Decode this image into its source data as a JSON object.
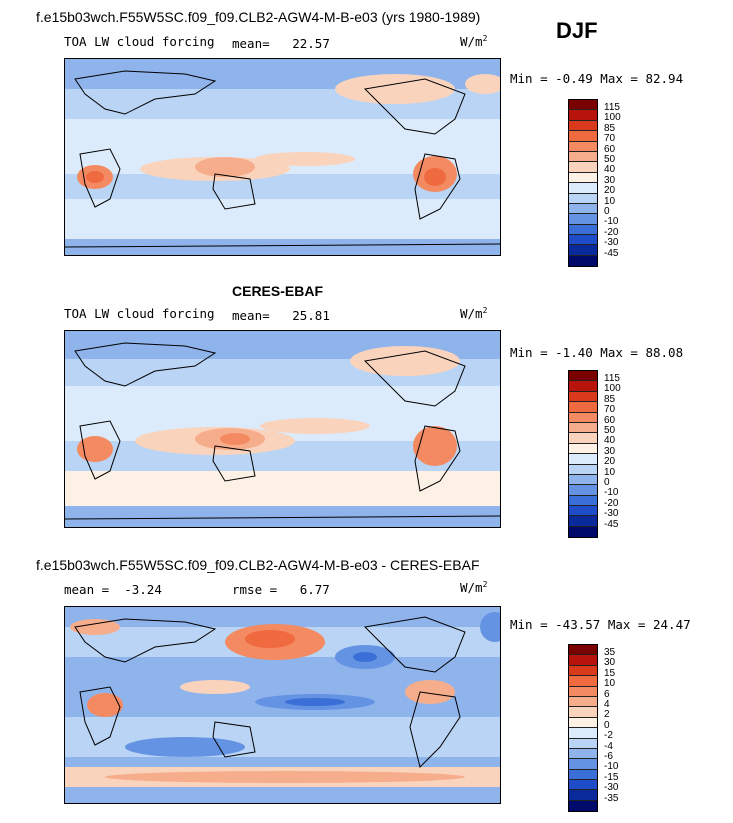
{
  "season": "DJF",
  "panel1": {
    "title": "f.e15b03wch.F55W5SC.f09_f09.CLB2-AGW4-M-B-e03 (yrs 1980-1989)",
    "variable": "TOA LW cloud forcing",
    "mean_label": "mean=",
    "mean_value": "22.57",
    "units": "W/m",
    "units_sup": "2",
    "min_max": "Min =  -0.49 Max =  82.94",
    "levels": [
      "115",
      "100",
      "85",
      "70",
      "60",
      "50",
      "40",
      "30",
      "20",
      "10",
      "0",
      "-10",
      "-20",
      "-30",
      "-45"
    ]
  },
  "panel2": {
    "title": "CERES-EBAF",
    "variable": "TOA LW cloud forcing",
    "mean_label": "mean=",
    "mean_value": "25.81",
    "units": "W/m",
    "units_sup": "2",
    "min_max": "Min =  -1.40 Max =  88.08",
    "levels": [
      "115",
      "100",
      "85",
      "70",
      "60",
      "50",
      "40",
      "30",
      "20",
      "10",
      "0",
      "-10",
      "-20",
      "-30",
      "-45"
    ]
  },
  "panel3": {
    "title": "f.e15b03wch.F55W5SC.f09_f09.CLB2-AGW4-M-B-e03 - CERES-EBAF",
    "mean_label": "mean =",
    "mean_value": "-3.24",
    "rmse_label": "rmse =",
    "rmse_value": "6.77",
    "units": "W/m",
    "units_sup": "2",
    "min_max": "Min = -43.57 Max =  24.47",
    "levels": [
      "35",
      "30",
      "15",
      "10",
      "6",
      "4",
      "2",
      "0",
      "-2",
      "-4",
      "-6",
      "-10",
      "-15",
      "-30",
      "-35"
    ]
  },
  "colors": {
    "abs_scale": [
      "#7a0000",
      "#b8140c",
      "#d93a1c",
      "#f06a40",
      "#f48a62",
      "#f6ad8c",
      "#fad3bd",
      "#fdf0e4",
      "#dcebfb",
      "#b9d4f4",
      "#8fb4ec",
      "#6393e2",
      "#3a6fd8",
      "#1f4cc8",
      "#0a2a9c",
      "#000a6b"
    ],
    "diff_scale": [
      "#7a0000",
      "#b8140c",
      "#d93a1c",
      "#f06a40",
      "#f48a62",
      "#f6ad8c",
      "#fad3bd",
      "#fdf0e4",
      "#dcebfb",
      "#b9d4f4",
      "#8fb4ec",
      "#6393e2",
      "#3a6fd8",
      "#1f4cc8",
      "#0a2a9c",
      "#000a6b"
    ]
  }
}
